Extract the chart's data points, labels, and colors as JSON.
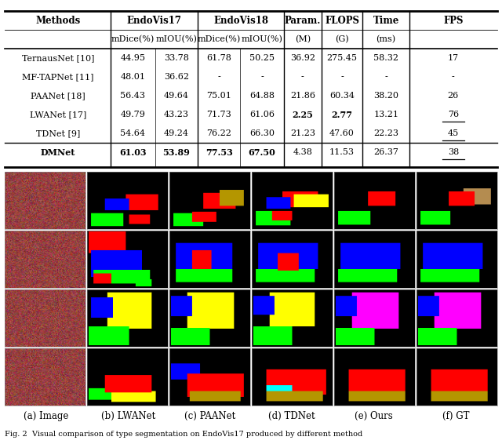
{
  "table": {
    "rows": [
      [
        "TernausNet [10]",
        "44.95",
        "33.78",
        "61.78",
        "50.25",
        "36.92",
        "275.45",
        "58.32",
        "17"
      ],
      [
        "MF-TAPNet [11]",
        "48.01",
        "36.62",
        "-",
        "-",
        "-",
        "-",
        "-",
        "-"
      ],
      [
        "PAANet [18]",
        "56.43",
        "49.64",
        "75.01",
        "64.88",
        "21.86",
        "60.34",
        "38.20",
        "26"
      ],
      [
        "LWANet [17]",
        "49.79",
        "43.23",
        "71.73",
        "61.06",
        "2.25",
        "2.77",
        "13.21",
        "76"
      ],
      [
        "TDNet [9]",
        "54.64",
        "49.24",
        "76.22",
        "66.30",
        "21.23",
        "47.60",
        "22.23",
        "45"
      ],
      [
        "DMNet",
        "61.03",
        "53.89",
        "77.53",
        "67.50",
        "4.38",
        "11.53",
        "26.37",
        "38"
      ]
    ]
  },
  "col_labels": [
    "(a) Image",
    "(b) LWANet",
    "(c) PAANet",
    "(d) TDNet",
    "(e) Ours",
    "(f) GT"
  ],
  "figure_caption": "Fig. 2  Visual comparison of type segmentation on EndoVis17 produced by different method",
  "bg_color": "#ffffff"
}
